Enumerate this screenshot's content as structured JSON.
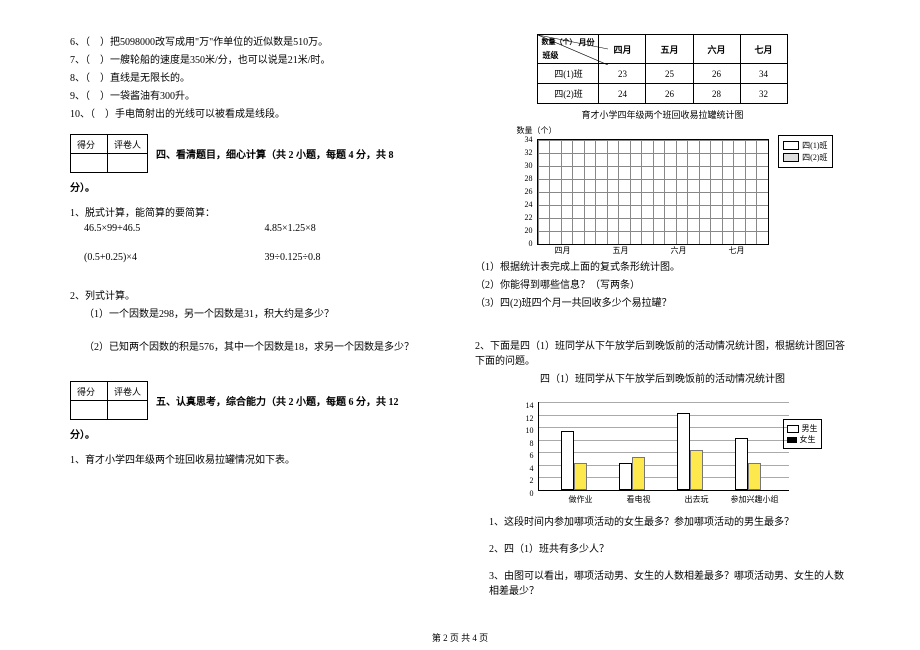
{
  "left": {
    "q6": "6、（　）把5098000改写成用\"万\"作单位的近似数是510万。",
    "q7": "7、（　）一艘轮船的速度是350米/分，也可以说是21米/时。",
    "q8": "8、（　）直线是无限长的。",
    "q9": "9、（　）一袋酱油有300升。",
    "q10": "10、（　）手电筒射出的光线可以被看成是线段。",
    "scoreHeaders": [
      "得分",
      "评卷人"
    ],
    "section4": "四、看清题目，细心计算（共 2 小题，每题 4 分，共 8",
    "section4b": "分）。",
    "calc1_title": "1、脱式计算，能简算的要简算：",
    "calc1a": "46.5×99+46.5",
    "calc1b": "4.85×1.25×8",
    "calc1c": "(0.5+0.25)×4",
    "calc1d": "39÷0.125÷0.8",
    "calc2_title": "2、列式计算。",
    "calc2a": "（1）一个因数是298，另一个因数是31，积大约是多少？",
    "calc2b": "（2）已知两个因数的积是576，其中一个因数是18，求另一个因数是多少？",
    "section5": "五、认真思考，综合能力（共 2 小题，每题 6 分，共 12",
    "section5b": "分）。",
    "task1": "1、育才小学四年级两个班回收易拉罐情况如下表。"
  },
  "right": {
    "table": {
      "diag_top": "月份",
      "diag_bot": "班级",
      "diag_mid": "数量（个）",
      "cols": [
        "四月",
        "五月",
        "六月",
        "七月"
      ],
      "rows": [
        {
          "label": "四(1)班",
          "v": [
            "23",
            "25",
            "26",
            "34"
          ]
        },
        {
          "label": "四(2)班",
          "v": [
            "24",
            "26",
            "28",
            "32"
          ]
        }
      ]
    },
    "chart1": {
      "title": "育才小学四年级两个班回收易拉罐统计图",
      "ylabel": "数量（个）",
      "yticks": [
        "34",
        "32",
        "30",
        "28",
        "26",
        "24",
        "22",
        "20",
        "0"
      ],
      "xticks": [
        "四月",
        "五月",
        "六月",
        "七月"
      ],
      "legend": [
        "四(1)班",
        "四(2)班"
      ],
      "legend_colors": [
        "#ffffff",
        "#dedede"
      ]
    },
    "q1_1": "（1）根据统计表完成上面的复式条形统计图。",
    "q1_2": "（2）你能得到哪些信息？（写两条）",
    "q1_3": "（3）四(2)班四个月一共回收多少个易拉罐？",
    "task2a": "2、下面是四（1）班同学从下午放学后到晚饭前的活动情况统计图，根据统计图回答下面的问题。",
    "task2b": "四（1）班同学从下午放学后到晚饭前的活动情况统计图",
    "chart2": {
      "yticks": [
        "14",
        "12",
        "10",
        "8",
        "6",
        "4",
        "2",
        "0"
      ],
      "xticks": [
        "做作业",
        "看电视",
        "出去玩",
        "参加兴趣小组"
      ],
      "legend": [
        "男生",
        "女生"
      ],
      "bars": [
        {
          "group": 0,
          "h": 9,
          "c": "bwhite",
          "off": 0
        },
        {
          "group": 0,
          "h": 4,
          "c": "byellow",
          "off": 1
        },
        {
          "group": 1,
          "h": 4,
          "c": "bwhite",
          "off": 0
        },
        {
          "group": 1,
          "h": 5,
          "c": "byellow",
          "off": 1
        },
        {
          "group": 2,
          "h": 12,
          "c": "bwhite",
          "off": 0
        },
        {
          "group": 2,
          "h": 6,
          "c": "byellow",
          "off": 1
        },
        {
          "group": 3,
          "h": 8,
          "c": "bwhite",
          "off": 0
        },
        {
          "group": 3,
          "h": 4,
          "c": "byellow",
          "off": 1
        }
      ]
    },
    "q2_1": "1、这段时间内参加哪项活动的女生最多？参加哪项活动的男生最多？",
    "q2_2": "2、四（1）班共有多少人？",
    "q2_3": "3、由图可以看出，哪项活动男、女生的人数相差最多？哪项活动男、女生的人数相差最少？"
  },
  "footer": "第 2 页 共 4 页"
}
